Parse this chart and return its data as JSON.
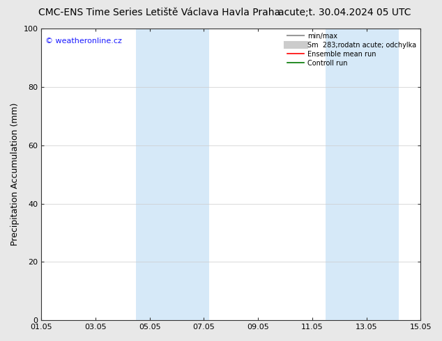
{
  "title_left": "CMC-ENS Time Series Letiště Václava Havla Praha",
  "title_right": "acute;t. 30.04.2024 05 UTC",
  "ylabel": "Precipitation Accumulation (mm)",
  "watermark": "© weatheronline.cz",
  "watermark_color": "#1a1aff",
  "ylim": [
    0,
    100
  ],
  "yticks": [
    0,
    20,
    40,
    60,
    80,
    100
  ],
  "xtick_labels": [
    "01.05",
    "03.05",
    "05.05",
    "07.05",
    "09.05",
    "11.05",
    "13.05",
    "15.05"
  ],
  "xtick_positions_days": [
    0,
    2,
    4,
    6,
    8,
    10,
    12,
    14
  ],
  "shaded_bands": [
    {
      "x_start_days": 3.5,
      "x_end_days": 6.2
    },
    {
      "x_start_days": 10.5,
      "x_end_days": 13.2
    }
  ],
  "band_color": "#d6e9f8",
  "legend_entries": [
    {
      "label": "min/max",
      "color": "#999999",
      "linewidth": 1.5,
      "linestyle": "-"
    },
    {
      "label": "Sm  283;rodatn acute; odchylka",
      "color": "#cccccc",
      "linewidth": 8,
      "linestyle": "-"
    },
    {
      "label": "Ensemble mean run",
      "color": "#ff0000",
      "linewidth": 1.2,
      "linestyle": "-"
    },
    {
      "label": "Controll run",
      "color": "#007700",
      "linewidth": 1.2,
      "linestyle": "-"
    }
  ],
  "bg_color": "#e8e8e8",
  "plot_bg_color": "#ffffff",
  "grid_color": "#cccccc",
  "title_fontsize": 10,
  "tick_fontsize": 8,
  "ylabel_fontsize": 9
}
